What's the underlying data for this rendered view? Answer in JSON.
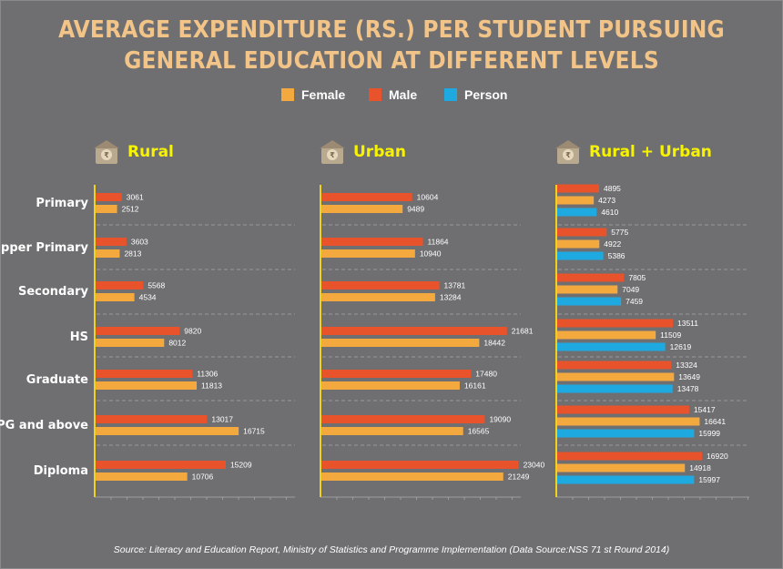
{
  "title": {
    "line1": "AVERAGE EXPENDITURE (RS.) PER STUDENT PURSUING",
    "line2": "GENERAL EDUCATION AT DIFFERENT LEVELS"
  },
  "legend": [
    {
      "label": "Female",
      "color": "#f4a93f"
    },
    {
      "label": "Male",
      "color": "#e8532b"
    },
    {
      "label": "Person",
      "color": "#1fa9e1"
    }
  ],
  "panels": [
    {
      "title": "Rural",
      "icon": "house-money-icon"
    },
    {
      "title": "Urban",
      "icon": "house-money-icon"
    },
    {
      "title": "Rural + Urban",
      "icon": "house-money-icon"
    }
  ],
  "source": "Source: Literacy and Education Report, Ministry of Statistics and Programme Implementation (Data Source:NSS 71 st Round 2014)",
  "chart_data": {
    "type": "bar",
    "orientation": "horizontal",
    "title": "AVERAGE EXPENDITURE (RS.) PER STUDENT PURSUING GENERAL EDUCATION AT DIFFERENT LEVELS",
    "categories": [
      "Primary",
      "Upper Primary",
      "Secondary",
      "HS",
      "Graduate",
      "PG and above",
      "Diploma"
    ],
    "xlim": [
      0,
      25000
    ],
    "panels": [
      {
        "name": "Rural",
        "series": [
          {
            "name": "Male",
            "values": [
              3061,
              3603,
              5568,
              9820,
              11306,
              13017,
              15209
            ]
          },
          {
            "name": "Female",
            "values": [
              2512,
              2813,
              4534,
              8012,
              11813,
              16715,
              10706
            ]
          }
        ]
      },
      {
        "name": "Urban",
        "series": [
          {
            "name": "Male",
            "values": [
              10604,
              11864,
              13781,
              21681,
              17480,
              19090,
              23040
            ]
          },
          {
            "name": "Female",
            "values": [
              9489,
              10940,
              13284,
              18442,
              16161,
              16565,
              21249
            ]
          }
        ]
      },
      {
        "name": "Rural + Urban",
        "series": [
          {
            "name": "Male",
            "values": [
              4895,
              5775,
              7805,
              13511,
              13324,
              15417,
              16920
            ]
          },
          {
            "name": "Female",
            "values": [
              4273,
              4922,
              7049,
              11509,
              13649,
              16641,
              14918
            ]
          },
          {
            "name": "Person",
            "values": [
              4610,
              5386,
              7459,
              12619,
              13478,
              15999,
              15997
            ]
          }
        ]
      }
    ]
  }
}
